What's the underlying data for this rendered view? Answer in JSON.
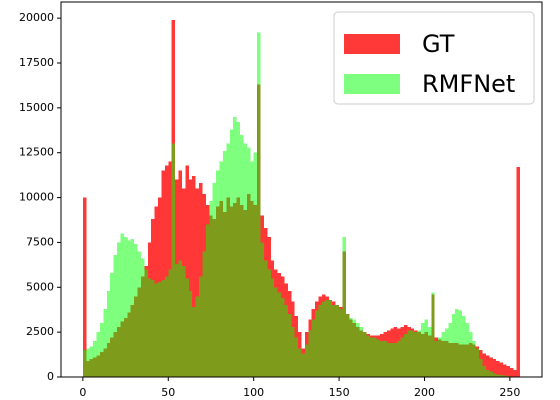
{
  "chart_data": {
    "type": "histogram",
    "bins": [
      0,
      2,
      4,
      6,
      8,
      10,
      12,
      14,
      16,
      18,
      20,
      22,
      24,
      26,
      28,
      30,
      32,
      34,
      36,
      38,
      40,
      42,
      44,
      46,
      48,
      50,
      52,
      54,
      56,
      58,
      60,
      62,
      64,
      66,
      68,
      70,
      72,
      74,
      76,
      78,
      80,
      82,
      84,
      86,
      88,
      90,
      92,
      94,
      96,
      98,
      100,
      102,
      104,
      106,
      108,
      110,
      112,
      114,
      116,
      118,
      120,
      122,
      124,
      126,
      128,
      130,
      132,
      134,
      136,
      138,
      140,
      142,
      144,
      146,
      148,
      150,
      152,
      154,
      156,
      158,
      160,
      162,
      164,
      166,
      168,
      170,
      172,
      174,
      176,
      178,
      180,
      182,
      184,
      186,
      188,
      190,
      192,
      194,
      196,
      198,
      200,
      202,
      204,
      206,
      208,
      210,
      212,
      214,
      216,
      218,
      220,
      222,
      224,
      226,
      228,
      230,
      232,
      234,
      236,
      238,
      240,
      242,
      244,
      246,
      248,
      250,
      252,
      254,
      256
    ],
    "series": [
      {
        "name": "GT",
        "color": "#ff0000",
        "alpha": 0.78,
        "values": [
          10000,
          900,
          1000,
          1100,
          1200,
          1400,
          1600,
          1900,
          2200,
          2500,
          2800,
          3100,
          3300,
          3600,
          4000,
          4500,
          5000,
          5600,
          6200,
          7500,
          8800,
          9500,
          10000,
          11500,
          11800,
          12000,
          19900,
          11000,
          11500,
          10500,
          11800,
          11000,
          11200,
          10500,
          10800,
          10200,
          9600,
          9000,
          8800,
          9500,
          9800,
          9200,
          10000,
          9500,
          9700,
          10000,
          9600,
          9300,
          10200,
          9800,
          9600,
          16300,
          9000,
          8300,
          7800,
          6500,
          6000,
          5800,
          5600,
          5200,
          4800,
          4200,
          3400,
          2500,
          1600,
          2500,
          3200,
          3800,
          4200,
          4500,
          4600,
          4500,
          4300,
          4200,
          4000,
          3900,
          7000,
          3500,
          3200,
          3000,
          2800,
          2600,
          2500,
          2400,
          2300,
          2300,
          2300,
          2400,
          2500,
          2600,
          2700,
          2800,
          2700,
          2800,
          2900,
          2800,
          2700,
          2600,
          2500,
          2400,
          2500,
          2300,
          4600,
          2200,
          2100,
          2000,
          2000,
          1900,
          1900,
          1900,
          1800,
          1800,
          1800,
          1900,
          1800,
          1700,
          1500,
          1300,
          1200,
          1100,
          1000,
          900,
          800,
          700,
          600,
          500,
          400,
          11700
        ]
      },
      {
        "name": "RMFNet",
        "color": "#00ff00",
        "alpha": 0.5,
        "values": [
          1500,
          1600,
          1700,
          2000,
          2500,
          3000,
          3800,
          4800,
          5800,
          6800,
          7500,
          8000,
          7800,
          7600,
          7700,
          7400,
          7000,
          6600,
          6000,
          5500,
          5400,
          5200,
          5300,
          5400,
          5600,
          6000,
          13000,
          6300,
          6500,
          6200,
          5500,
          4800,
          3900,
          4500,
          5600,
          7000,
          8500,
          9800,
          10800,
          11500,
          12000,
          12600,
          13000,
          13800,
          14500,
          14200,
          13500,
          13000,
          12800,
          12000,
          12500,
          19200,
          7500,
          6500,
          6000,
          5500,
          5000,
          4700,
          4400,
          4000,
          3500,
          2800,
          2200,
          1600,
          1300,
          1800,
          2600,
          3200,
          3700,
          4000,
          4200,
          4300,
          4300,
          4000,
          4000,
          3800,
          7800,
          3500,
          3300,
          3200,
          3000,
          2800,
          2500,
          2300,
          2200,
          2200,
          2100,
          2000,
          2000,
          1900,
          1900,
          1900,
          2000,
          2200,
          2400,
          2600,
          2600,
          2500,
          2600,
          3000,
          3200,
          2800,
          4700,
          2000,
          2200,
          2500,
          2700,
          3000,
          3500,
          3800,
          3700,
          3400,
          3000,
          2500,
          2000,
          1600,
          1000,
          600,
          400,
          300,
          200,
          150,
          100,
          80,
          60,
          40,
          20,
          0
        ]
      }
    ],
    "xlim": [
      -12.8,
      268.8
    ],
    "xticks": [
      0,
      50,
      100,
      150,
      200,
      250
    ],
    "ylim": [
      0,
      20900
    ],
    "yticks": [
      0,
      2500,
      5000,
      7500,
      10000,
      12500,
      15000,
      17500,
      20000
    ],
    "legend": "upper right"
  }
}
